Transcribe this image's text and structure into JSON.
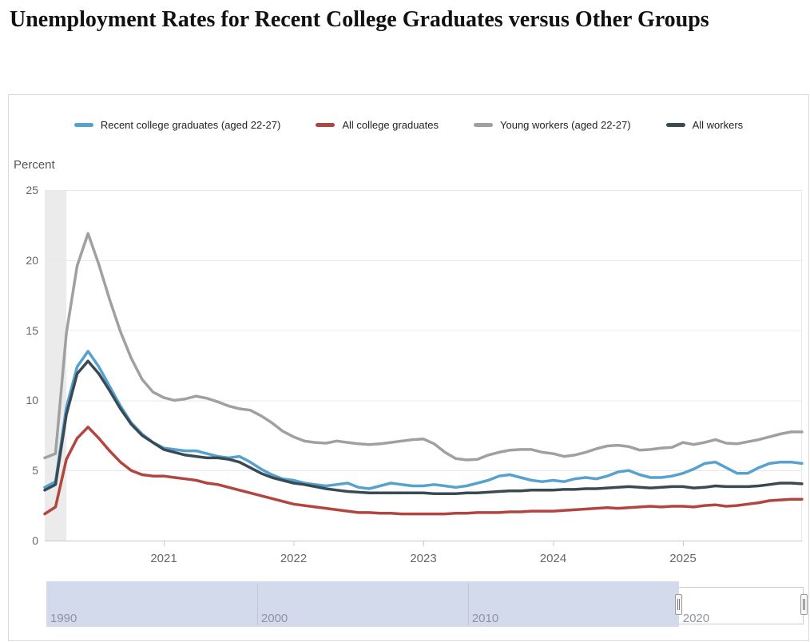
{
  "page": {
    "title": "Unemployment Rates for Recent College Graduates versus Other Groups"
  },
  "y_axis": {
    "title": "Percent",
    "ticks": [
      0,
      5,
      10,
      15,
      20,
      25
    ],
    "min": 0,
    "max": 25
  },
  "x_axis": {
    "ticks": [
      2021,
      2022,
      2023,
      2024,
      2025
    ]
  },
  "chart_data": {
    "type": "line",
    "title": "Unemployment Rates for Recent College Graduates versus Other Groups",
    "ylabel": "Percent",
    "frequency": "monthly",
    "x_start": "2020-02",
    "x_end": "2025-12",
    "xlim": [
      2020.083,
      2025.917
    ],
    "ylim": [
      0,
      25
    ],
    "grid": "horizontal",
    "legend_position": "top-center",
    "recession_band": {
      "from": 2020.083,
      "to": 2020.25,
      "color": "#ebebeb"
    },
    "series": [
      {
        "name": "Recent college graduates (aged 22-27)",
        "color": "#57a1ce",
        "values": [
          3.8,
          4.2,
          9.5,
          12.4,
          13.5,
          12.4,
          11.0,
          9.6,
          8.4,
          7.6,
          7.0,
          6.6,
          6.5,
          6.4,
          6.4,
          6.2,
          6.0,
          5.9,
          6.0,
          5.6,
          5.1,
          4.7,
          4.4,
          4.3,
          4.1,
          4.0,
          3.9,
          4.0,
          4.1,
          3.8,
          3.7,
          3.9,
          4.1,
          4.0,
          3.9,
          3.9,
          4.0,
          3.9,
          3.8,
          3.9,
          4.1,
          4.3,
          4.6,
          4.7,
          4.5,
          4.3,
          4.2,
          4.3,
          4.2,
          4.4,
          4.5,
          4.4,
          4.6,
          4.9,
          5.0,
          4.7,
          4.5,
          4.5,
          4.6,
          4.8,
          5.1,
          5.5,
          5.6,
          5.2,
          4.8,
          4.8,
          5.2,
          5.5,
          5.6,
          5.6,
          5.5
        ]
      },
      {
        "name": "All college graduates",
        "color": "#b2453f",
        "values": [
          1.9,
          2.4,
          5.8,
          7.3,
          8.1,
          7.3,
          6.4,
          5.6,
          5.0,
          4.7,
          4.6,
          4.6,
          4.5,
          4.4,
          4.3,
          4.1,
          4.0,
          3.8,
          3.6,
          3.4,
          3.2,
          3.0,
          2.8,
          2.6,
          2.5,
          2.4,
          2.3,
          2.2,
          2.1,
          2.0,
          2.0,
          1.95,
          1.95,
          1.9,
          1.9,
          1.9,
          1.9,
          1.9,
          1.95,
          1.95,
          2.0,
          2.0,
          2.0,
          2.05,
          2.05,
          2.1,
          2.1,
          2.1,
          2.15,
          2.2,
          2.25,
          2.3,
          2.35,
          2.3,
          2.35,
          2.4,
          2.45,
          2.4,
          2.45,
          2.45,
          2.4,
          2.5,
          2.55,
          2.45,
          2.5,
          2.6,
          2.7,
          2.85,
          2.9,
          2.95,
          2.95
        ]
      },
      {
        "name": "Young workers (aged 22-27)",
        "color": "#9ea0a2",
        "values": [
          5.9,
          6.2,
          14.8,
          19.6,
          21.9,
          19.7,
          17.2,
          14.9,
          13.0,
          11.5,
          10.6,
          10.2,
          10.0,
          10.1,
          10.3,
          10.15,
          9.9,
          9.6,
          9.4,
          9.3,
          8.9,
          8.4,
          7.8,
          7.4,
          7.1,
          7.0,
          6.95,
          7.1,
          7.0,
          6.9,
          6.85,
          6.9,
          7.0,
          7.1,
          7.2,
          7.25,
          6.9,
          6.3,
          5.85,
          5.75,
          5.8,
          6.1,
          6.3,
          6.45,
          6.5,
          6.5,
          6.3,
          6.2,
          6.0,
          6.1,
          6.3,
          6.55,
          6.75,
          6.8,
          6.7,
          6.45,
          6.5,
          6.6,
          6.65,
          7.0,
          6.85,
          7.0,
          7.2,
          6.95,
          6.9,
          7.05,
          7.2,
          7.4,
          7.6,
          7.75,
          7.75
        ]
      },
      {
        "name": "All workers",
        "color": "#3a4a53",
        "values": [
          3.6,
          4.0,
          9.0,
          11.9,
          12.8,
          11.9,
          10.7,
          9.4,
          8.3,
          7.5,
          7.0,
          6.5,
          6.3,
          6.1,
          6.0,
          5.9,
          5.9,
          5.8,
          5.6,
          5.2,
          4.8,
          4.5,
          4.3,
          4.1,
          4.0,
          3.85,
          3.7,
          3.6,
          3.5,
          3.45,
          3.4,
          3.4,
          3.4,
          3.4,
          3.4,
          3.4,
          3.35,
          3.35,
          3.35,
          3.4,
          3.4,
          3.45,
          3.5,
          3.55,
          3.55,
          3.6,
          3.6,
          3.6,
          3.65,
          3.65,
          3.7,
          3.7,
          3.75,
          3.8,
          3.85,
          3.8,
          3.75,
          3.8,
          3.85,
          3.85,
          3.75,
          3.8,
          3.9,
          3.85,
          3.85,
          3.85,
          3.9,
          4.0,
          4.1,
          4.1,
          4.05
        ]
      }
    ]
  },
  "legend": [
    {
      "label": "Recent college graduates (aged 22-27)",
      "color": "#57a1ce"
    },
    {
      "label": "All college graduates",
      "color": "#b2453f"
    },
    {
      "label": "Young workers (aged 22-27)",
      "color": "#9ea0a2"
    },
    {
      "label": "All workers",
      "color": "#3a4a53"
    }
  ],
  "navigator": {
    "axis_min": 1990,
    "axis_max": 2025.92,
    "selected_from": 2020,
    "selected_to": 2025.92,
    "tick_years": [
      1990,
      2000,
      2010,
      2020
    ],
    "tick_labels": [
      "1990",
      "2000",
      "2010",
      "2020"
    ],
    "mask_color": "#d2daec"
  },
  "style": {
    "grid_color": "#e8e8e8",
    "axis_line_color": "#c9c9c9",
    "tick_color": "#cccccc",
    "axis_text_color": "#666666",
    "recession_band_color": "#ebebeb"
  }
}
